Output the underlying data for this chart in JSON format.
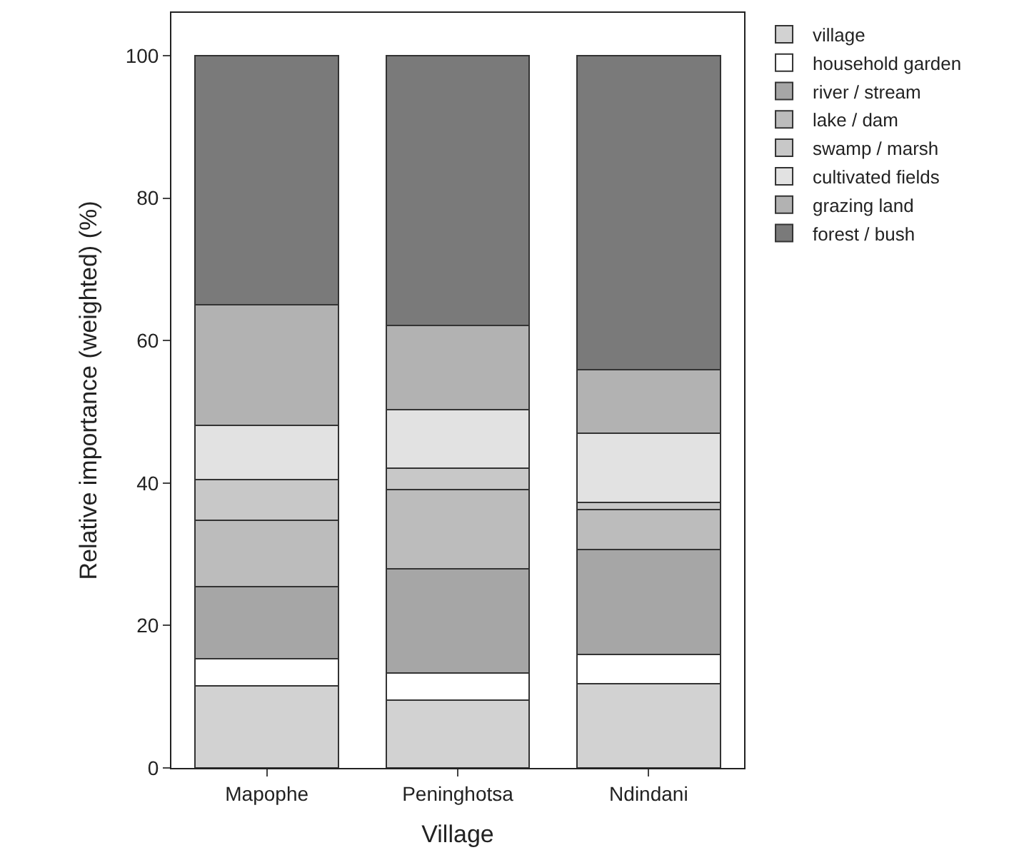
{
  "chart_data": {
    "type": "bar",
    "stacked": true,
    "xlabel": "Village",
    "ylabel": "Relative importance (weighted) (%)",
    "categories": [
      "Mapophe",
      "Peninghotsa",
      "Ndindani"
    ],
    "series": [
      {
        "name": "village",
        "color": "#d2d2d2",
        "values": [
          11.5,
          9.5,
          11.8
        ]
      },
      {
        "name": "household garden",
        "color": "#ffffff",
        "values": [
          3.8,
          3.8,
          4.1
        ]
      },
      {
        "name": "river / stream",
        "color": "#a6a6a6",
        "values": [
          10.1,
          14.7,
          14.8
        ]
      },
      {
        "name": "lake / dam",
        "color": "#bcbcbc",
        "values": [
          9.4,
          11.1,
          5.6
        ]
      },
      {
        "name": "swamp / marsh",
        "color": "#c8c8c8",
        "values": [
          5.7,
          3.0,
          1.0
        ]
      },
      {
        "name": "cultivated fields",
        "color": "#e2e2e2",
        "values": [
          7.6,
          8.2,
          9.7
        ]
      },
      {
        "name": "grazing land",
        "color": "#b2b2b2",
        "values": [
          16.9,
          11.8,
          8.9
        ]
      },
      {
        "name": "forest / bush",
        "color": "#7a7a7a",
        "values": [
          35.0,
          37.9,
          44.1
        ]
      }
    ],
    "ylim": [
      0,
      106
    ],
    "yticks": [
      0,
      20,
      40,
      60,
      80,
      100
    ],
    "legend": "top right"
  }
}
